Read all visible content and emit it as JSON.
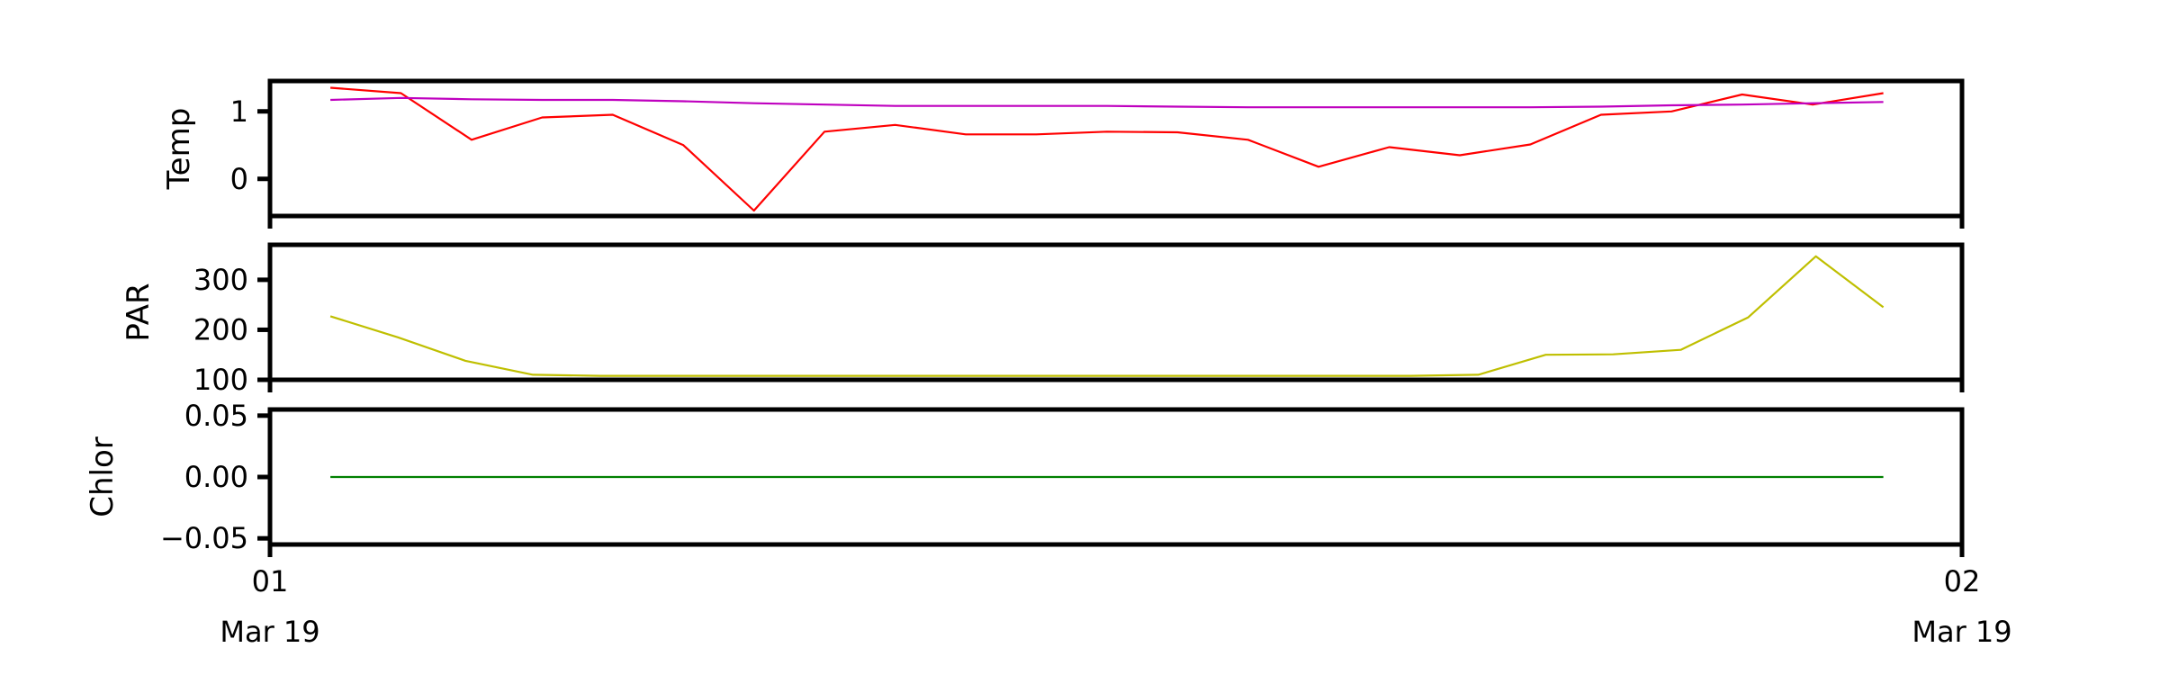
{
  "chart_data": [
    {
      "type": "line",
      "ylabel": "Temp",
      "yticks": [
        0,
        1
      ],
      "ylim": [
        -0.55,
        1.45
      ],
      "series": [
        {
          "color": "#ff0000",
          "values": [
            1.35,
            1.27,
            0.58,
            0.91,
            0.95,
            0.5,
            -0.47,
            0.7,
            0.8,
            0.66,
            0.66,
            0.7,
            0.69,
            0.58,
            0.18,
            0.47,
            0.35,
            0.51,
            0.95,
            1.0,
            1.25,
            1.1,
            1.27
          ]
        },
        {
          "color": "#bf00bf",
          "values": [
            1.17,
            1.2,
            1.18,
            1.17,
            1.17,
            1.15,
            1.12,
            1.1,
            1.08,
            1.08,
            1.08,
            1.08,
            1.07,
            1.06,
            1.06,
            1.06,
            1.06,
            1.06,
            1.07,
            1.09,
            1.1,
            1.12,
            1.14
          ]
        }
      ]
    },
    {
      "type": "line",
      "ylabel": "PAR",
      "yticks": [
        100,
        200,
        300
      ],
      "ylim": [
        100,
        370
      ],
      "series": [
        {
          "color": "#bfbf00",
          "values": [
            227,
            185,
            138,
            110,
            108,
            108,
            108,
            108,
            108,
            108,
            108,
            108,
            108,
            108,
            108,
            108,
            108,
            110,
            150,
            151,
            160,
            225,
            347,
            245
          ]
        }
      ]
    },
    {
      "type": "line",
      "ylabel": "Chlor",
      "yticks": [
        -0.05,
        0.0,
        0.05
      ],
      "ytick_labels": [
        "−0.05",
        "0.00",
        "0.05"
      ],
      "ylim": [
        -0.055,
        0.055
      ],
      "series": [
        {
          "color": "#008000",
          "values": [
            0,
            0
          ]
        }
      ]
    }
  ],
  "xaxis": {
    "xlim": [
      "2019-03-01 00:00",
      "2019-03-02 00:00"
    ],
    "ticks": [
      {
        "day": "01",
        "month": "Mar 19"
      },
      {
        "day": "02",
        "month": "Mar 19"
      }
    ]
  }
}
